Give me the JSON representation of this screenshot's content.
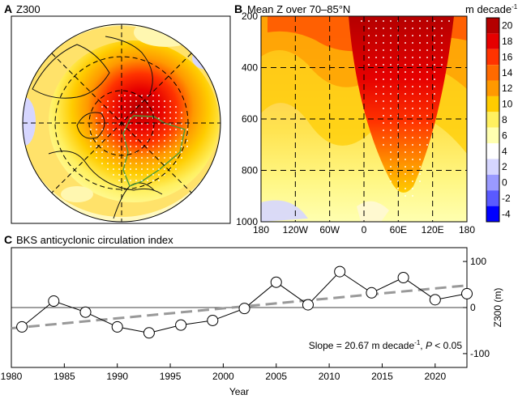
{
  "panel_a": {
    "letter": "A",
    "title": "Z300"
  },
  "panel_b": {
    "letter": "B",
    "title": "Mean Z over 70–85°N",
    "colorbar_unit": "m decade",
    "colorbar_unit_exp": "-1"
  },
  "panel_c": {
    "letter": "C",
    "title": "BKS anticyclonic circulation index",
    "ylabel": "Z300 (m)",
    "xlabel": "Year",
    "slope_text_a": "Slope = 20.67 m decade",
    "slope_exp": "-1",
    "slope_text_b": ", ",
    "p_text": "P",
    "p_rest": " < 0.05"
  },
  "colors": {
    "colorbar": [
      "#0000ff",
      "#5a5aff",
      "#9a9aff",
      "#d6d6ff",
      "#ffffff",
      "#ffffb0",
      "#fff060",
      "#ffcc00",
      "#ff9900",
      "#ff6a00",
      "#ff3300",
      "#e60000",
      "#b40000"
    ],
    "line": "#000000",
    "trend": "#999999"
  },
  "chart_data": [
    {
      "type": "heatmap",
      "title": "Z300",
      "projection": "polar stereographic, North Pole",
      "note": "Trend map of 300-hPa geopotential height; maximum over Barents-Kara Seas region outlined in green; stippling marks significance"
    },
    {
      "type": "heatmap",
      "title": "Mean Z over 70–85°N",
      "x_ticks": [
        "180",
        "120W",
        "60W",
        "0",
        "60E",
        "120E",
        "180"
      ],
      "y_ticks": [
        "200",
        "400",
        "600",
        "800",
        "1000"
      ],
      "ylim": [
        1000,
        200
      ],
      "colorbar_ticks": [
        "-4",
        "-2",
        "0",
        "2",
        "4",
        "6",
        "8",
        "10",
        "12",
        "14",
        "16",
        "18",
        "20"
      ],
      "colorbar_range": [
        -5,
        21
      ],
      "colorbar_unit": "m decade-1",
      "maximum_longitude": "about 60E-100E",
      "maximum_value": 20
    },
    {
      "type": "line",
      "title": "BKS anticyclonic circulation index",
      "xlabel": "Year",
      "ylabel": "Z300 (m)",
      "xlim": [
        1980,
        2023
      ],
      "ylim": [
        -130,
        130
      ],
      "x_ticks": [
        "1980",
        "1985",
        "1990",
        "1995",
        "2000",
        "2005",
        "2010",
        "2015",
        "2020"
      ],
      "y_ticks": [
        "100",
        "0",
        "-100"
      ],
      "x": [
        1981,
        1984,
        1987,
        1990,
        1993,
        1996,
        1999,
        2002,
        2005,
        2008,
        2011,
        2014,
        2017,
        2020,
        2023
      ],
      "values": [
        -42,
        14,
        -10,
        -42,
        -55,
        -38,
        -28,
        -2,
        55,
        6,
        78,
        32,
        65,
        17,
        30
      ],
      "trend": {
        "slope_per_decade": 20.67,
        "start": [
          1980,
          -45
        ],
        "end": [
          2023,
          48
        ]
      },
      "annotation": "Slope = 20.67 m decade-1, P < 0.05"
    }
  ]
}
